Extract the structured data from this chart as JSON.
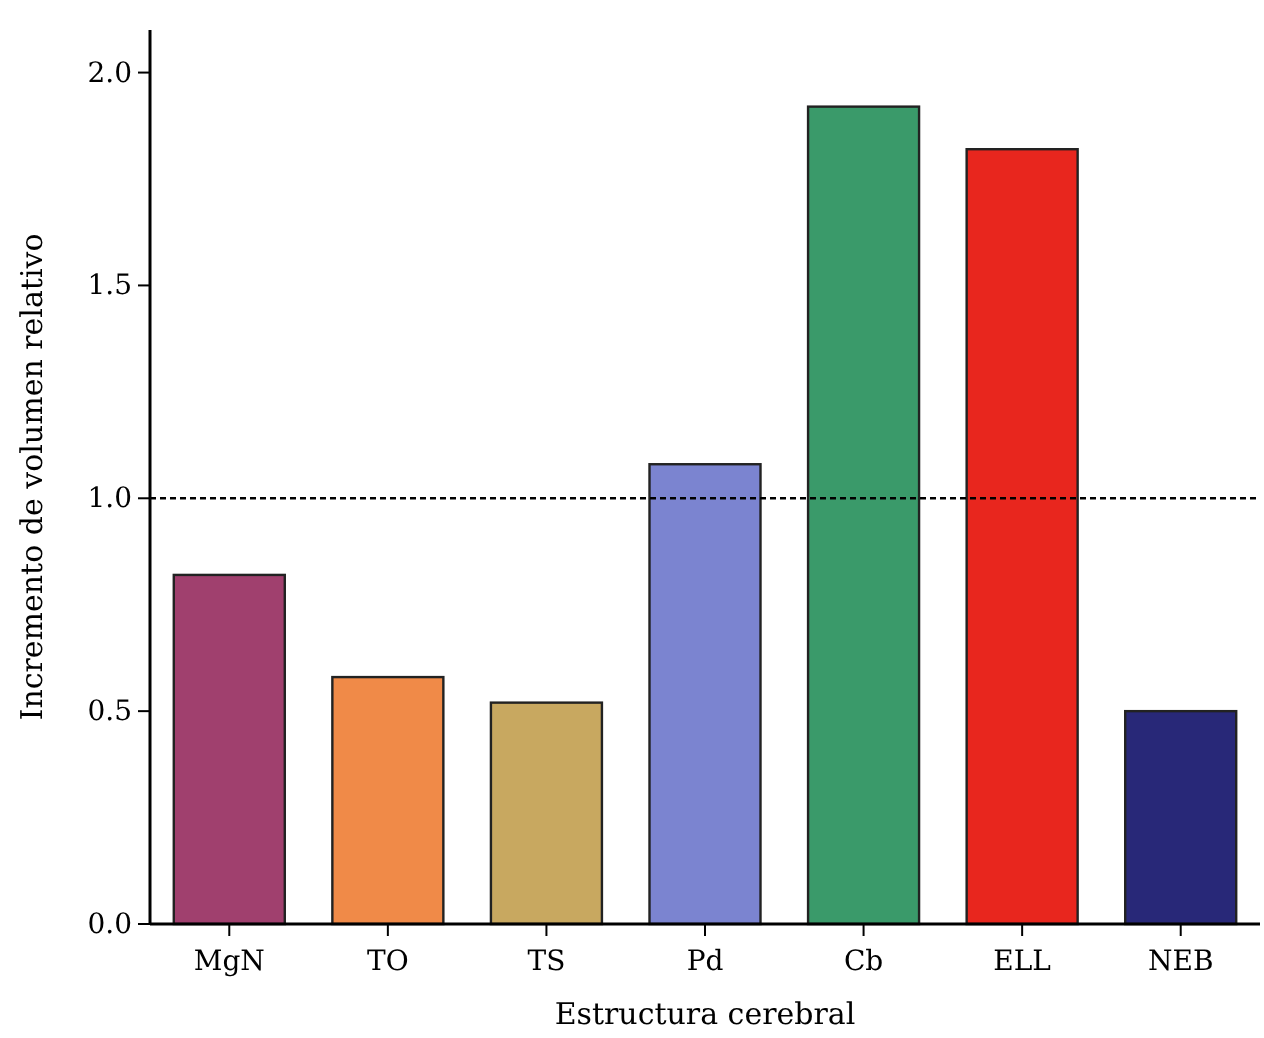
{
  "chart_data": {
    "type": "bar",
    "xlabel": "Estructura cerebral",
    "ylabel": "Incremento de volumen relativo",
    "categories": [
      "MgN",
      "TO",
      "TS",
      "Pd",
      "Cb",
      "ELL",
      "NEB"
    ],
    "values": [
      0.82,
      0.58,
      0.52,
      1.08,
      1.92,
      1.82,
      0.5
    ],
    "colors": [
      "#a0406e",
      "#f08a48",
      "#c8a860",
      "#7b84d0",
      "#3a9a6a",
      "#e8261e",
      "#282878"
    ],
    "ylim": [
      0,
      2.1
    ],
    "yticks": [
      {
        "value": 0,
        "label": "0.0"
      },
      {
        "value": 0.5,
        "label": "0.5"
      },
      {
        "value": 1,
        "label": "1.0"
      },
      {
        "value": 1.5,
        "label": "1.5"
      },
      {
        "value": 2,
        "label": "2.0"
      }
    ],
    "ref_lines": [
      {
        "axis": "y",
        "value": 1,
        "line_style": "dashed",
        "color": "#000000"
      }
    ],
    "grid": false
  }
}
